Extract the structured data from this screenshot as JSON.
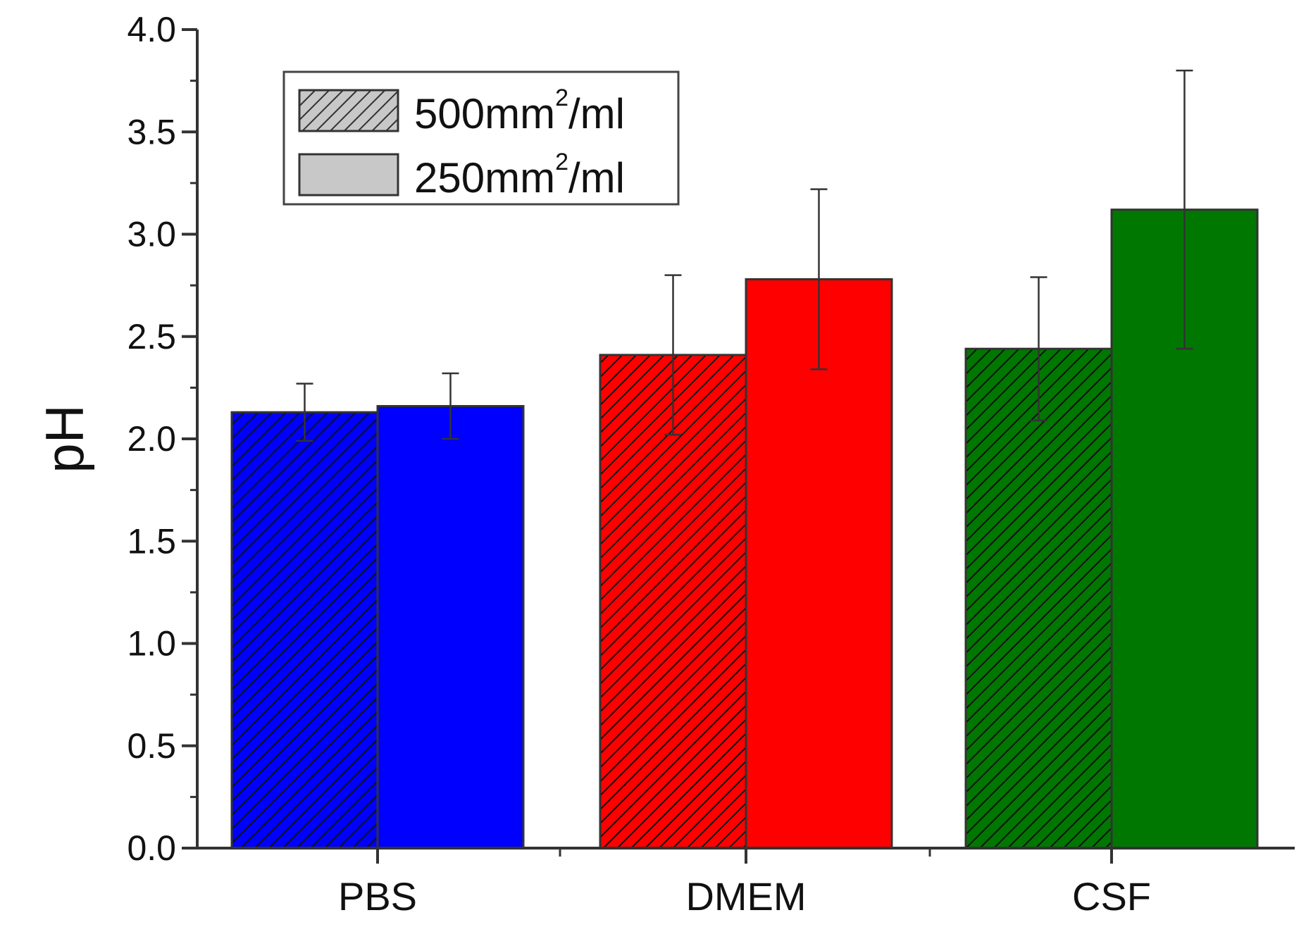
{
  "chart_data": {
    "type": "bar",
    "title": "",
    "xlabel": "",
    "ylabel": "pH",
    "ylim": [
      0,
      4.0
    ],
    "yticks": [
      0.0,
      0.5,
      1.0,
      1.5,
      2.0,
      2.5,
      3.0,
      3.5,
      4.0
    ],
    "ytick_labels": [
      "0.0",
      "0.5",
      "1.0",
      "1.5",
      "2.0",
      "2.5",
      "3.0",
      "3.5",
      "4.0"
    ],
    "grid": false,
    "legend_position": "top-left",
    "categories": [
      "PBS",
      "DMEM",
      "CSF"
    ],
    "category_colors": [
      "#0000ff",
      "#ff0000",
      "#007700"
    ],
    "series": [
      {
        "name": "500mm2/ml",
        "label_main": "500mm",
        "label_sup": "2",
        "label_unit": "/ml",
        "pattern": "hatched",
        "values": [
          2.13,
          2.41,
          2.44
        ],
        "errors": [
          0.14,
          0.39,
          0.35
        ]
      },
      {
        "name": "250mm2/ml",
        "label_main": "250mm",
        "label_sup": "2",
        "label_unit": "/ml",
        "pattern": "solid",
        "values": [
          2.16,
          2.78,
          3.12
        ],
        "errors": [
          0.16,
          0.44,
          0.68
        ]
      }
    ]
  }
}
